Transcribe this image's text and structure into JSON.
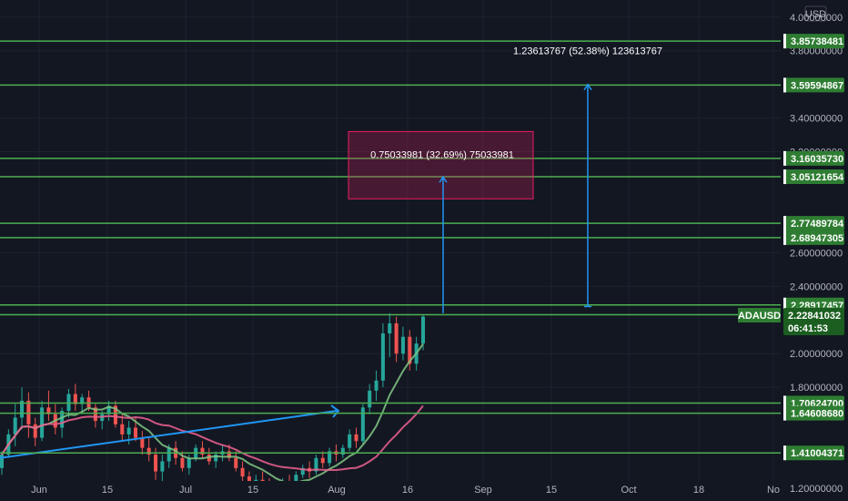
{
  "chart_data": {
    "type": "candlestick",
    "symbol": "ADAUSD",
    "currency": "USD",
    "last_price": "2.22841032",
    "countdown": "06:41:53",
    "y_range": [
      1.2,
      4.08
    ],
    "price_ticks": [
      "4.00000000",
      "3.80000000",
      "3.40000000",
      "3.20000000",
      "2.60000000",
      "2.40000000",
      "2.00000000",
      "1.80000000",
      "1.20000000"
    ],
    "time_ticks": [
      "Jun",
      "15",
      "Jul",
      "15",
      "Aug",
      "16",
      "Sep",
      "15",
      "Oct",
      "18",
      "No"
    ],
    "levels": [
      {
        "price": 3.85738481,
        "label": "3.85738481"
      },
      {
        "price": 3.59594867,
        "label": "3.59594867"
      },
      {
        "price": 3.1603573,
        "label": "3.16035730"
      },
      {
        "price": 3.05121654,
        "label": "3.05121654"
      },
      {
        "price": 2.77489784,
        "label": "2.77489784"
      },
      {
        "price": 2.68947305,
        "label": "2.68947305"
      },
      {
        "price": 2.28917457,
        "label": "2.28917457"
      },
      {
        "price": 2.23147162,
        "label": "2.23147162"
      },
      {
        "price": 1.706247,
        "label": "1.70624700"
      },
      {
        "price": 1.6460868,
        "label": "1.64608680"
      },
      {
        "price": 1.41004371,
        "label": "1.41004371"
      }
    ],
    "measures": [
      {
        "label": "0.75033981 (32.69%) 75033981",
        "from": 2.24,
        "to": 3.05
      },
      {
        "label": "1.23613767 (52.38%) 123613767",
        "from": 2.28,
        "to": 3.6
      }
    ],
    "candles": [
      [
        1.32,
        1.42,
        1.28,
        1.4
      ],
      [
        1.4,
        1.55,
        1.38,
        1.52
      ],
      [
        1.52,
        1.7,
        1.45,
        1.62
      ],
      [
        1.62,
        1.8,
        1.55,
        1.72
      ],
      [
        1.72,
        1.77,
        1.5,
        1.58
      ],
      [
        1.58,
        1.62,
        1.45,
        1.5
      ],
      [
        1.5,
        1.72,
        1.48,
        1.68
      ],
      [
        1.68,
        1.78,
        1.6,
        1.64
      ],
      [
        1.64,
        1.7,
        1.52,
        1.56
      ],
      [
        1.56,
        1.68,
        1.5,
        1.66
      ],
      [
        1.66,
        1.79,
        1.62,
        1.76
      ],
      [
        1.76,
        1.82,
        1.66,
        1.7
      ],
      [
        1.7,
        1.76,
        1.64,
        1.74
      ],
      [
        1.74,
        1.78,
        1.66,
        1.68
      ],
      [
        1.68,
        1.7,
        1.56,
        1.6
      ],
      [
        1.6,
        1.66,
        1.55,
        1.64
      ],
      [
        1.64,
        1.72,
        1.6,
        1.69
      ],
      [
        1.69,
        1.72,
        1.56,
        1.58
      ],
      [
        1.58,
        1.64,
        1.48,
        1.52
      ],
      [
        1.52,
        1.6,
        1.46,
        1.56
      ],
      [
        1.56,
        1.62,
        1.48,
        1.5
      ],
      [
        1.5,
        1.54,
        1.4,
        1.44
      ],
      [
        1.44,
        1.5,
        1.36,
        1.4
      ],
      [
        1.4,
        1.44,
        1.25,
        1.3
      ],
      [
        1.3,
        1.4,
        1.24,
        1.36
      ],
      [
        1.36,
        1.46,
        1.32,
        1.44
      ],
      [
        1.44,
        1.48,
        1.34,
        1.38
      ],
      [
        1.38,
        1.42,
        1.3,
        1.32
      ],
      [
        1.32,
        1.4,
        1.28,
        1.38
      ],
      [
        1.38,
        1.46,
        1.36,
        1.44
      ],
      [
        1.44,
        1.48,
        1.38,
        1.4
      ],
      [
        1.4,
        1.44,
        1.34,
        1.36
      ],
      [
        1.36,
        1.42,
        1.32,
        1.4
      ],
      [
        1.4,
        1.46,
        1.36,
        1.42
      ],
      [
        1.42,
        1.46,
        1.36,
        1.38
      ],
      [
        1.38,
        1.42,
        1.3,
        1.32
      ],
      [
        1.32,
        1.36,
        1.24,
        1.27
      ],
      [
        1.27,
        1.3,
        1.18,
        1.22
      ],
      [
        1.22,
        1.28,
        1.18,
        1.25
      ],
      [
        1.25,
        1.3,
        1.2,
        1.22
      ],
      [
        1.22,
        1.26,
        1.16,
        1.2
      ],
      [
        1.2,
        1.24,
        1.15,
        1.21
      ],
      [
        1.21,
        1.26,
        1.18,
        1.24
      ],
      [
        1.24,
        1.28,
        1.2,
        1.23
      ],
      [
        1.23,
        1.3,
        1.21,
        1.28
      ],
      [
        1.28,
        1.34,
        1.26,
        1.32
      ],
      [
        1.32,
        1.36,
        1.26,
        1.3
      ],
      [
        1.3,
        1.4,
        1.28,
        1.38
      ],
      [
        1.38,
        1.42,
        1.32,
        1.35
      ],
      [
        1.35,
        1.44,
        1.33,
        1.42
      ],
      [
        1.42,
        1.46,
        1.36,
        1.4
      ],
      [
        1.4,
        1.46,
        1.38,
        1.44
      ],
      [
        1.44,
        1.55,
        1.42,
        1.52
      ],
      [
        1.52,
        1.56,
        1.44,
        1.48
      ],
      [
        1.48,
        1.7,
        1.46,
        1.68
      ],
      [
        1.68,
        1.82,
        1.64,
        1.78
      ],
      [
        1.78,
        1.9,
        1.72,
        1.84
      ],
      [
        1.84,
        2.18,
        1.8,
        2.12
      ],
      [
        2.12,
        2.24,
        1.98,
        2.18
      ],
      [
        2.18,
        2.22,
        1.95,
        2.0
      ],
      [
        2.0,
        2.16,
        1.96,
        2.1
      ],
      [
        2.1,
        2.14,
        1.9,
        1.94
      ],
      [
        1.94,
        2.1,
        1.9,
        2.06
      ],
      [
        2.06,
        2.23,
        2.02,
        2.22
      ]
    ]
  }
}
